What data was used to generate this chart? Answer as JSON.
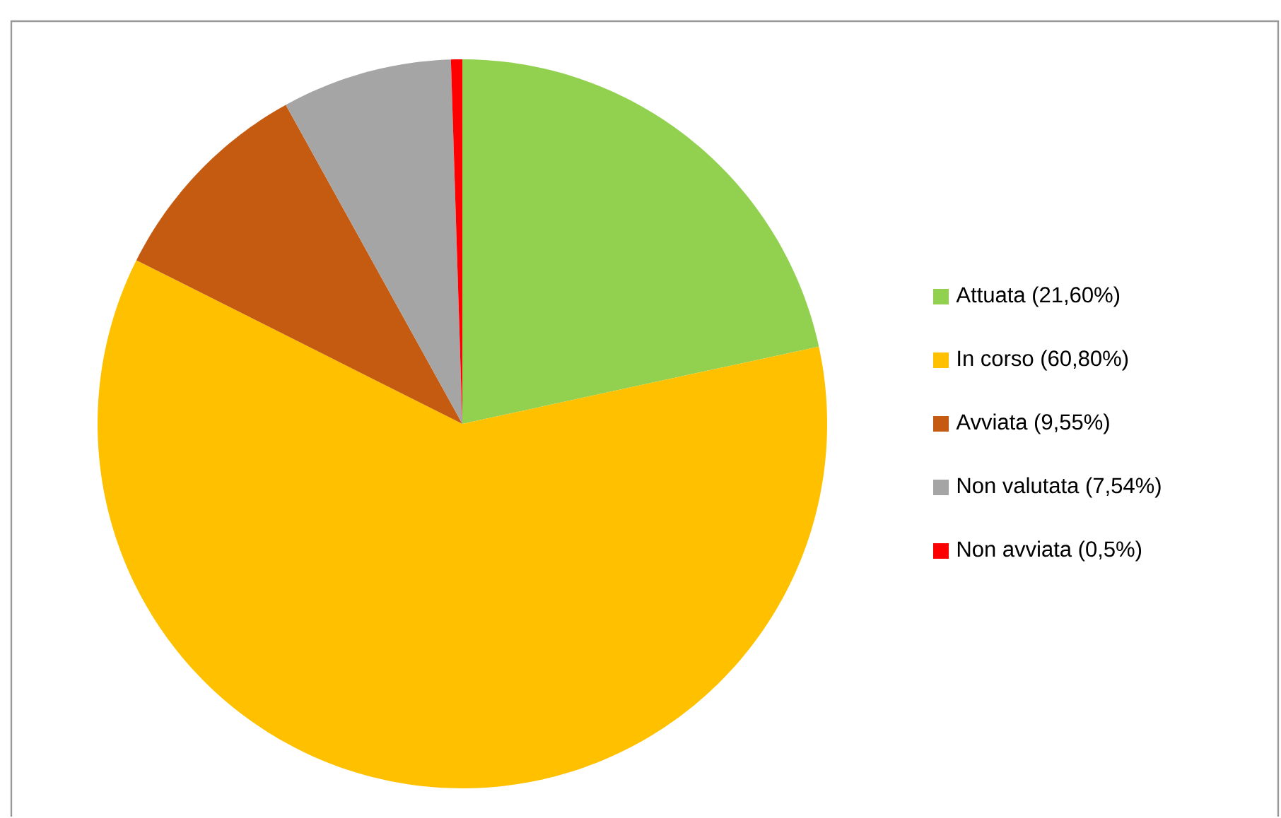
{
  "chart_data": {
    "type": "pie",
    "categories": [
      "Attuata (21,60%)",
      "In corso (60,80%)",
      "Avviata (9,55%)",
      "Non valutata (7,54%)",
      "Non avviata (0,5%)"
    ],
    "values": [
      21.6,
      60.8,
      9.55,
      7.54,
      0.5
    ],
    "colors": [
      "#92d050",
      "#ffc000",
      "#c55a11",
      "#a5a5a5",
      "#ff0000"
    ],
    "legend": "right"
  }
}
